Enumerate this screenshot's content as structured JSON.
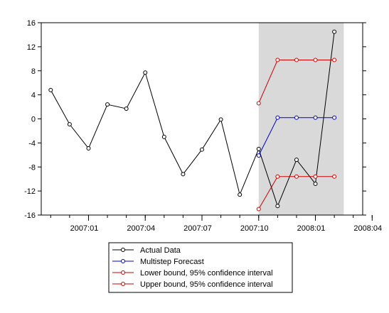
{
  "chart_data": {
    "type": "line",
    "x": [
      "2006:11",
      "2006:12",
      "2007:01",
      "2007:02",
      "2007:03",
      "2007:04",
      "2007:05",
      "2007:06",
      "2007:07",
      "2007:08",
      "2007:09",
      "2007:10",
      "2007:11",
      "2007:12",
      "2008:01",
      "2008:02",
      "2008:03"
    ],
    "series": [
      {
        "name": "Actual Data",
        "color": "#000000",
        "values": [
          4.8,
          -0.9,
          -4.9,
          2.4,
          1.7,
          7.7,
          -3.0,
          -9.2,
          -5.1,
          -0.1,
          -12.6,
          -5.0,
          -14.5,
          -6.8,
          -10.8,
          14.5,
          null
        ]
      },
      {
        "name": "Multistep Forecast",
        "color": "#0000cc",
        "values": [
          null,
          null,
          null,
          null,
          null,
          null,
          null,
          null,
          null,
          null,
          null,
          -6.1,
          0.2,
          0.2,
          0.2,
          0.2,
          null
        ]
      },
      {
        "name": "Lower bound, 95% confidence interval",
        "color": "#cc0000",
        "values": [
          null,
          null,
          null,
          null,
          null,
          null,
          null,
          null,
          null,
          null,
          null,
          -15.0,
          -9.6,
          -9.6,
          -9.6,
          -9.6,
          null
        ]
      },
      {
        "name": "Upper bound, 95% confidence interval",
        "color": "#cc0000",
        "values": [
          null,
          null,
          null,
          null,
          null,
          null,
          null,
          null,
          null,
          null,
          null,
          2.6,
          9.8,
          9.8,
          9.8,
          9.8,
          null
        ]
      }
    ],
    "x_tick_labels": [
      "2007:01",
      "2007:04",
      "2007:07",
      "2007:10",
      "2008:01",
      "2008:04"
    ],
    "x_tick_positions": [
      2,
      5,
      8,
      11,
      14,
      17
    ],
    "y_ticks": [
      -16,
      -12,
      -8,
      -4,
      0,
      4,
      8,
      12,
      16
    ],
    "ylim": [
      -16,
      16
    ],
    "xlim": [
      -0.5,
      16.5
    ],
    "shaded_region": {
      "from": 11,
      "to": 15.5,
      "color": "#d9d9d9"
    },
    "legend_position": "bottom-center",
    "grid": false
  }
}
